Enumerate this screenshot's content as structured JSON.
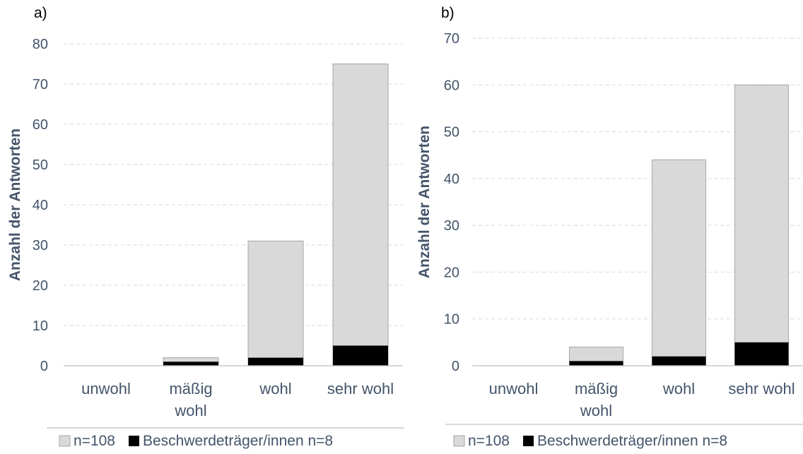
{
  "colors": {
    "total": "#d9d9d9",
    "total_edge": "#a6a6a6",
    "complainants": "#000000",
    "text": "#44546a"
  },
  "chart_data": [
    {
      "type": "bar",
      "panel_label": "a)",
      "categories": [
        [
          "unwohl"
        ],
        [
          "mäßig",
          "wohl"
        ],
        [
          "wohl"
        ],
        [
          "sehr wohl"
        ]
      ],
      "series": [
        {
          "name": "n=108",
          "values": [
            0,
            2,
            31,
            75
          ]
        },
        {
          "name": "Beschwerdeträger/innen n=8",
          "values": [
            0,
            1,
            2,
            5
          ]
        }
      ],
      "ylabel": "Anzahl der Antworten",
      "ylim": [
        0,
        80
      ],
      "yticks": [
        0,
        10,
        20,
        30,
        40,
        50,
        60,
        70,
        80
      ],
      "grid": true,
      "legend": "bottom"
    },
    {
      "type": "bar",
      "panel_label": "b)",
      "categories": [
        [
          "unwohl"
        ],
        [
          "mäßig",
          "wohl"
        ],
        [
          "wohl"
        ],
        [
          "sehr wohl"
        ]
      ],
      "series": [
        {
          "name": "n=108",
          "values": [
            0,
            4,
            44,
            60
          ]
        },
        {
          "name": "Beschwerdeträger/innen n=8",
          "values": [
            0,
            1,
            2,
            5
          ]
        }
      ],
      "ylabel": "Anzahl der Antworten",
      "ylim": [
        0,
        70
      ],
      "yticks": [
        0,
        10,
        20,
        30,
        40,
        50,
        60,
        70
      ],
      "grid": true,
      "legend": "bottom"
    }
  ]
}
